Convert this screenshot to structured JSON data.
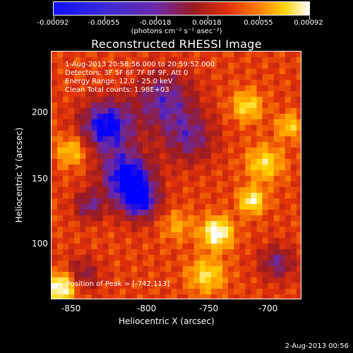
{
  "colorbar": {
    "tick_labels": [
      "-0.00092",
      "-0.00055",
      "-0.00018",
      "0.00018",
      "0.00055",
      "0.00092"
    ],
    "unit_label": "(photons cm⁻² s⁻¹ asec⁻²)",
    "range": [
      -0.00092,
      0.00092
    ],
    "colormap": [
      "#0000ff",
      "#6a2aa8",
      "#9a1a20",
      "#e0300a",
      "#ff8c00",
      "#ffd700",
      "#ffffff"
    ]
  },
  "chart_data": {
    "type": "heatmap",
    "title": "Reconstructed RHESSI Image",
    "xlabel": "Heliocentric X (arcsec)",
    "ylabel": "Heliocentric Y (arcsec)",
    "xlim": [
      -870,
      -678
    ],
    "ylim": [
      55,
      245
    ],
    "x_ticks": [
      "-850",
      "-800",
      "-750",
      "-700"
    ],
    "y_ticks": [
      "100",
      "150",
      "200"
    ],
    "annotations": [
      "1-Aug-2013 20:58:56.000 to 20:59:52.000",
      "Detectors: 3F 5F 6F 7F 8F 9F, Att 0",
      "Energy Range: 12.0 - 25.0 keV",
      "Clean    Total counts: 1.98E+03"
    ],
    "peak_label": "Position of Peak = [-742,113]",
    "peak_position": [
      -742,
      113
    ]
  },
  "footer": {
    "timestamp": "2-Aug-2013 00:56"
  }
}
